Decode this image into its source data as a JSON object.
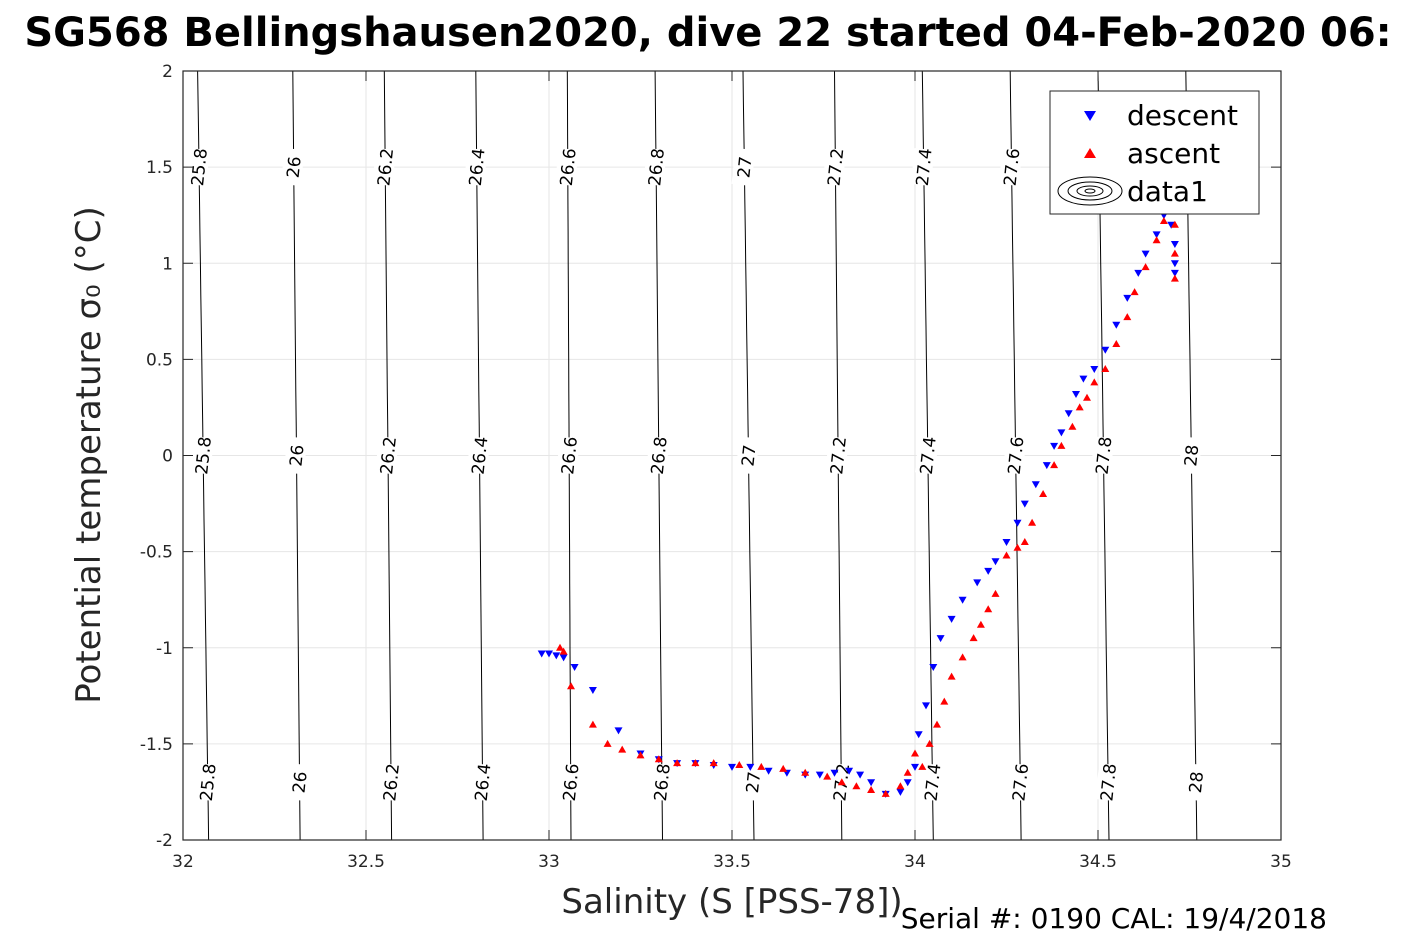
{
  "chart_data": {
    "type": "scatter",
    "title": "SG568 Bellingshausen2020, dive 22 started 04-Feb-2020 06:",
    "xlabel": "Salinity (S [PSS-78])",
    "ylabel": "Potential temperature σ₀ (°C)",
    "xlim": [
      32,
      35
    ],
    "ylim": [
      -2,
      2
    ],
    "xticks": [
      32,
      32.5,
      33,
      33.5,
      34,
      34.5,
      35
    ],
    "xtick_labels": [
      "32",
      "32.5",
      "33",
      "33.5",
      "34",
      "34.5",
      "35"
    ],
    "yticks": [
      -2,
      -1.5,
      -1,
      -0.5,
      0,
      0.5,
      1,
      1.5,
      2
    ],
    "ytick_labels": [
      "-2",
      "-1.5",
      "-1",
      "-0.5",
      "0",
      "0.5",
      "1",
      "1.5",
      "2"
    ],
    "grid": true,
    "legend_position": "top-right",
    "legend": [
      "descent",
      "ascent",
      "data1"
    ],
    "footer": "Serial #: 0190  CAL: 19/4/2018",
    "contours": {
      "name": "data1",
      "levels": [
        25.8,
        26,
        26.2,
        26.4,
        26.6,
        26.8,
        27,
        27.2,
        27.4,
        27.6,
        27.8,
        28
      ],
      "level_labels": [
        "25.8",
        "26",
        "26.2",
        "26.4",
        "26.6",
        "26.8",
        "27",
        "27.2",
        "27.4",
        "27.6",
        "27.8",
        "28"
      ],
      "salinity_at_minus2": [
        32.07,
        32.32,
        32.57,
        32.82,
        33.06,
        33.31,
        33.56,
        33.8,
        34.05,
        34.29,
        34.53,
        34.77
      ],
      "salinity_at_plus2": [
        32.04,
        32.3,
        32.55,
        32.8,
        33.05,
        33.29,
        33.53,
        33.78,
        34.02,
        34.26,
        34.5,
        34.74
      ],
      "label_temps": [
        1.5,
        0.0,
        -1.7
      ],
      "color": "#000000"
    },
    "series": [
      {
        "name": "descent",
        "marker": "down-triangle",
        "color": "#0000ff",
        "points": [
          [
            32.98,
            -1.03
          ],
          [
            33.0,
            -1.03
          ],
          [
            33.02,
            -1.04
          ],
          [
            33.04,
            -1.05
          ],
          [
            33.07,
            -1.1
          ],
          [
            33.12,
            -1.22
          ],
          [
            33.19,
            -1.43
          ],
          [
            33.25,
            -1.55
          ],
          [
            33.3,
            -1.58
          ],
          [
            33.35,
            -1.6
          ],
          [
            33.4,
            -1.6
          ],
          [
            33.45,
            -1.61
          ],
          [
            33.5,
            -1.62
          ],
          [
            33.55,
            -1.62
          ],
          [
            33.6,
            -1.64
          ],
          [
            33.65,
            -1.65
          ],
          [
            33.7,
            -1.66
          ],
          [
            33.74,
            -1.66
          ],
          [
            33.78,
            -1.65
          ],
          [
            33.82,
            -1.64
          ],
          [
            33.85,
            -1.66
          ],
          [
            33.88,
            -1.7
          ],
          [
            33.92,
            -1.76
          ],
          [
            33.96,
            -1.75
          ],
          [
            33.98,
            -1.7
          ],
          [
            34.0,
            -1.62
          ],
          [
            34.01,
            -1.45
          ],
          [
            34.03,
            -1.3
          ],
          [
            34.05,
            -1.1
          ],
          [
            34.07,
            -0.95
          ],
          [
            34.1,
            -0.85
          ],
          [
            34.13,
            -0.75
          ],
          [
            34.17,
            -0.66
          ],
          [
            34.2,
            -0.6
          ],
          [
            34.22,
            -0.55
          ],
          [
            34.25,
            -0.45
          ],
          [
            34.28,
            -0.35
          ],
          [
            34.3,
            -0.25
          ],
          [
            34.33,
            -0.15
          ],
          [
            34.36,
            -0.05
          ],
          [
            34.38,
            0.05
          ],
          [
            34.4,
            0.12
          ],
          [
            34.42,
            0.22
          ],
          [
            34.44,
            0.32
          ],
          [
            34.46,
            0.4
          ],
          [
            34.49,
            0.45
          ],
          [
            34.52,
            0.55
          ],
          [
            34.55,
            0.68
          ],
          [
            34.58,
            0.82
          ],
          [
            34.61,
            0.95
          ],
          [
            34.63,
            1.05
          ],
          [
            34.66,
            1.15
          ],
          [
            34.68,
            1.25
          ],
          [
            34.7,
            1.28
          ],
          [
            34.7,
            1.2
          ],
          [
            34.71,
            1.1
          ],
          [
            34.71,
            1.0
          ],
          [
            34.71,
            0.95
          ]
        ]
      },
      {
        "name": "ascent",
        "marker": "up-triangle",
        "color": "#ff0000",
        "points": [
          [
            33.03,
            -1.0
          ],
          [
            33.04,
            -1.02
          ],
          [
            33.06,
            -1.2
          ],
          [
            33.12,
            -1.4
          ],
          [
            33.16,
            -1.5
          ],
          [
            33.2,
            -1.53
          ],
          [
            33.25,
            -1.56
          ],
          [
            33.3,
            -1.58
          ],
          [
            33.35,
            -1.6
          ],
          [
            33.4,
            -1.6
          ],
          [
            33.45,
            -1.6
          ],
          [
            33.52,
            -1.61
          ],
          [
            33.58,
            -1.62
          ],
          [
            33.64,
            -1.63
          ],
          [
            33.7,
            -1.65
          ],
          [
            33.76,
            -1.67
          ],
          [
            33.8,
            -1.7
          ],
          [
            33.84,
            -1.72
          ],
          [
            33.88,
            -1.74
          ],
          [
            33.92,
            -1.76
          ],
          [
            33.96,
            -1.72
          ],
          [
            33.98,
            -1.65
          ],
          [
            34.0,
            -1.55
          ],
          [
            34.02,
            -1.62
          ],
          [
            34.04,
            -1.5
          ],
          [
            34.06,
            -1.4
          ],
          [
            34.08,
            -1.28
          ],
          [
            34.1,
            -1.15
          ],
          [
            34.13,
            -1.05
          ],
          [
            34.16,
            -0.95
          ],
          [
            34.18,
            -0.88
          ],
          [
            34.2,
            -0.8
          ],
          [
            34.22,
            -0.72
          ],
          [
            34.25,
            -0.52
          ],
          [
            34.28,
            -0.48
          ],
          [
            34.3,
            -0.45
          ],
          [
            34.32,
            -0.35
          ],
          [
            34.35,
            -0.2
          ],
          [
            34.38,
            -0.05
          ],
          [
            34.4,
            0.05
          ],
          [
            34.43,
            0.15
          ],
          [
            34.45,
            0.25
          ],
          [
            34.47,
            0.3
          ],
          [
            34.49,
            0.38
          ],
          [
            34.52,
            0.45
          ],
          [
            34.55,
            0.58
          ],
          [
            34.58,
            0.72
          ],
          [
            34.6,
            0.85
          ],
          [
            34.63,
            0.98
          ],
          [
            34.66,
            1.12
          ],
          [
            34.68,
            1.22
          ],
          [
            34.7,
            1.3
          ],
          [
            34.71,
            1.2
          ],
          [
            34.71,
            1.05
          ],
          [
            34.71,
            0.92
          ]
        ]
      }
    ]
  }
}
